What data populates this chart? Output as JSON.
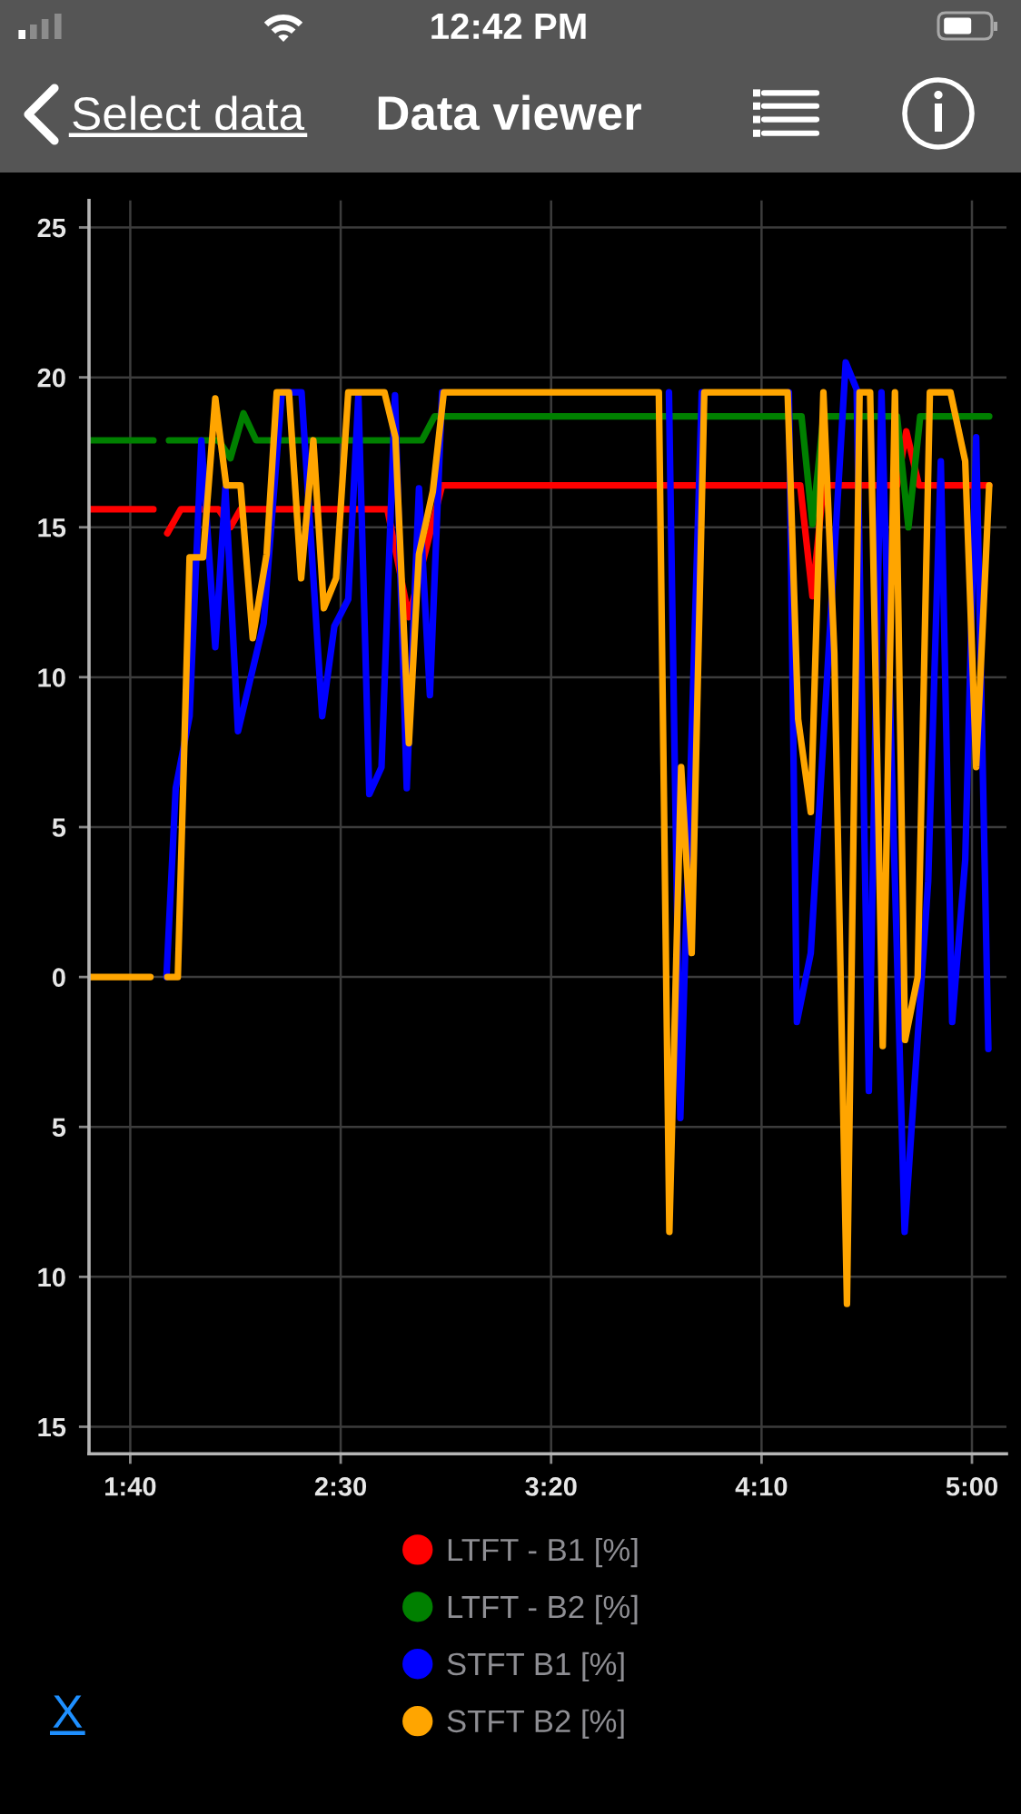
{
  "chart_data": {
    "type": "line",
    "title": "Data viewer",
    "annotations": [
      "Select data",
      "12:42 PM",
      "X"
    ],
    "xlim": [
      90.2,
      308.2
    ],
    "ylim": [
      -15.9,
      25.9
    ],
    "xticks": [
      {
        "value": 100,
        "label": "1:40"
      },
      {
        "value": 150,
        "label": "2:30"
      },
      {
        "value": 200,
        "label": "3:20"
      },
      {
        "value": 250,
        "label": "4:10"
      },
      {
        "value": 300,
        "label": "5:00"
      }
    ],
    "yticks": [
      {
        "value": -15,
        "label": "15"
      },
      {
        "value": -10,
        "label": "10"
      },
      {
        "value": -5,
        "label": "5"
      },
      0,
      5,
      10,
      15,
      20,
      25
    ],
    "grid": true,
    "legend": "bottom",
    "series": [
      {
        "name": "LTFT - B1 [%]",
        "color": "#ff0000",
        "x": [
          90.2,
          105.5,
          107.5,
          108.8,
          112.0,
          121.0,
          123.8,
          126.2,
          161.1,
          166.2,
          174.1,
          259.2,
          262.1,
          264.7,
          282.2,
          284.4,
          287.4,
          304.1
        ],
        "values": [
          15.6,
          15.6,
          null,
          14.8,
          15.6,
          15.6,
          15.0,
          15.6,
          15.6,
          12.0,
          16.4,
          16.4,
          12.7,
          16.4,
          16.4,
          18.2,
          16.4,
          16.4
        ]
      },
      {
        "name": "LTFT - B2 [%]",
        "color": "#008000",
        "x": [
          90.2,
          105.5,
          107.5,
          109.2,
          121.0,
          123.8,
          126.9,
          129.9,
          169.3,
          172.3,
          259.5,
          262.1,
          264.7,
          282.2,
          284.9,
          287.7,
          304.1
        ],
        "values": [
          17.9,
          17.9,
          null,
          17.9,
          17.9,
          17.3,
          18.8,
          17.9,
          17.9,
          18.7,
          18.7,
          15.1,
          18.7,
          18.7,
          15.0,
          18.7,
          18.7
        ]
      },
      {
        "name": "STFT B1 [%]",
        "color": "#0000ff",
        "x": [
          108.6,
          110.8,
          114.1,
          116.9,
          120.2,
          122.6,
          125.6,
          131.7,
          136.0,
          140.7,
          145.6,
          148.5,
          151.8,
          154.2,
          156.8,
          159.7,
          162.9,
          165.7,
          168.6,
          171.2,
          174.1,
          200.0,
          228.0,
          230.7,
          235.8,
          246.0,
          256.5,
          258.4,
          261.7,
          270.0,
          272.6,
          275.5,
          278.5,
          284.0,
          289.6,
          292.6,
          295.3,
          298.4,
          301.0,
          303.9
        ],
        "values": [
          0,
          6.3,
          8.7,
          17.9,
          11.0,
          16.3,
          8.2,
          11.8,
          19.5,
          19.5,
          8.7,
          11.7,
          12.6,
          19.4,
          6.1,
          7.0,
          19.4,
          6.3,
          16.3,
          9.4,
          19.5,
          null,
          19.5,
          -4.7,
          19.5,
          null,
          19.5,
          -1.5,
          0.8,
          20.5,
          19.6,
          -3.8,
          19.5,
          -8.5,
          3.2,
          17.2,
          -1.5,
          3.9,
          18.0,
          -2.4
        ]
      },
      {
        "name": "STFT B2 [%]",
        "color": "#ffa500",
        "x": [
          90.2,
          104.8,
          107.3,
          108.8,
          111.3,
          114.1,
          117.3,
          120.2,
          122.8,
          126.2,
          129.1,
          132.4,
          134.8,
          137.7,
          140.6,
          143.5,
          146.0,
          148.9,
          151.8,
          160.4,
          163.0,
          166.2,
          168.6,
          171.9,
          174.5,
          225.6,
          228.1,
          230.9,
          233.4,
          236.4,
          256.2,
          258.7,
          261.7,
          264.7,
          267.3,
          270.3,
          273.3,
          275.8,
          278.8,
          281.7,
          284.1,
          287.1,
          290.0,
          294.9,
          298.4,
          301.0,
          304.1
        ],
        "values": [
          0,
          0,
          null,
          0,
          0,
          14.0,
          14.0,
          19.3,
          16.4,
          16.4,
          11.3,
          14.1,
          19.5,
          19.5,
          13.3,
          17.9,
          12.3,
          13.3,
          19.5,
          19.5,
          18.0,
          7.8,
          14.1,
          16.2,
          19.5,
          19.5,
          -8.5,
          7.0,
          0.8,
          19.5,
          19.5,
          8.6,
          5.5,
          19.5,
          10.8,
          -10.9,
          19.5,
          19.5,
          -2.3,
          19.5,
          -2.1,
          0,
          19.5,
          19.5,
          17.2,
          7.0,
          16.4
        ]
      }
    ]
  }
}
